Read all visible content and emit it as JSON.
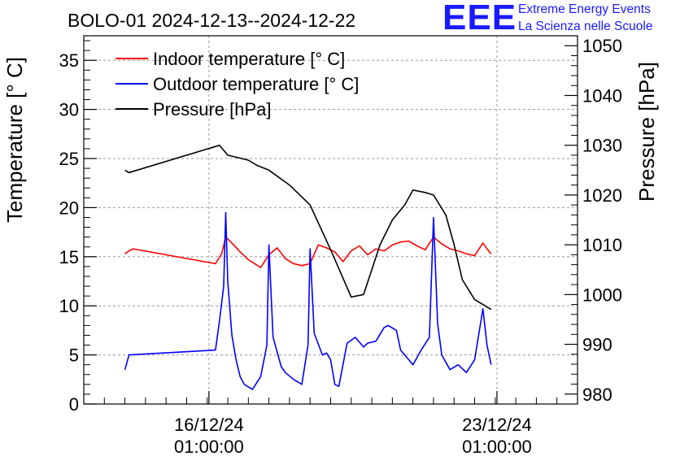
{
  "logo": {
    "mark": "EEE",
    "line1": "Extreme Energy Events",
    "line2": "La Scienza nelle Scuole",
    "color": "#1a1aff"
  },
  "chart_data": {
    "type": "line",
    "title": "BOLO-01 2024-12-13--2024-12-22",
    "ylabel": "Temperature [° C]",
    "y2label": "Pressure [hPa]",
    "ylim": [
      0,
      37.5
    ],
    "y2lim": [
      978,
      1052
    ],
    "xlim": [
      0,
      12.0
    ],
    "x_units": "days since 2024-12-13 00:00",
    "yticks": [
      0,
      5,
      10,
      15,
      20,
      25,
      30,
      35
    ],
    "y2ticks": [
      980,
      990,
      1000,
      1010,
      1020,
      1030,
      1040,
      1050
    ],
    "xticks": [
      {
        "x": 3.042,
        "label1": "16/12/24",
        "label2": "01:00:00"
      },
      {
        "x": 10.042,
        "label1": "23/12/24",
        "label2": "01:00:00"
      }
    ],
    "grid": true,
    "legend": "top-left",
    "series": [
      {
        "name": "Indoor temperature [° C]",
        "color": "#ff0000",
        "axis": "left",
        "x": [
          1.0,
          1.1,
          1.2,
          3.2,
          3.35,
          3.45,
          3.6,
          3.8,
          4.0,
          4.3,
          4.5,
          4.7,
          4.9,
          5.1,
          5.3,
          5.5,
          5.7,
          5.9,
          6.1,
          6.3,
          6.5,
          6.7,
          6.9,
          7.1,
          7.3,
          7.5,
          7.7,
          7.9,
          8.1,
          8.3,
          8.5,
          8.7,
          8.9,
          9.1,
          9.3,
          9.5,
          9.7,
          9.8,
          9.9
        ],
        "y": [
          15.3,
          15.6,
          15.8,
          14.3,
          15.3,
          17.0,
          16.4,
          15.5,
          14.7,
          13.9,
          15.2,
          15.9,
          14.8,
          14.3,
          14.1,
          14.3,
          16.2,
          15.9,
          15.5,
          14.5,
          15.6,
          16.1,
          15.2,
          15.8,
          15.6,
          16.2,
          16.5,
          16.6,
          16.1,
          15.7,
          17.0,
          16.3,
          15.8,
          15.6,
          15.3,
          15.1,
          16.4,
          15.8,
          15.3
        ]
      },
      {
        "name": "Outdoor temperature [° C]",
        "color": "#0000ff",
        "axis": "left",
        "x": [
          1.0,
          1.1,
          3.2,
          3.3,
          3.4,
          3.45,
          3.5,
          3.6,
          3.7,
          3.8,
          3.9,
          4.1,
          4.3,
          4.45,
          4.5,
          4.6,
          4.8,
          4.9,
          5.1,
          5.3,
          5.45,
          5.5,
          5.6,
          5.8,
          5.9,
          6.0,
          6.1,
          6.2,
          6.4,
          6.6,
          6.8,
          6.9,
          7.1,
          7.3,
          7.4,
          7.6,
          7.7,
          7.9,
          8.0,
          8.2,
          8.4,
          8.5,
          8.6,
          8.7,
          8.9,
          9.1,
          9.3,
          9.5,
          9.7,
          9.8,
          9.9
        ],
        "y": [
          3.5,
          5.0,
          5.5,
          8.5,
          12.0,
          19.5,
          12.5,
          7.0,
          4.5,
          2.8,
          2.0,
          1.5,
          2.8,
          6.0,
          16.2,
          6.8,
          3.8,
          3.2,
          2.5,
          2.0,
          6.0,
          15.8,
          7.2,
          5.0,
          5.2,
          4.5,
          2.0,
          1.8,
          6.2,
          6.8,
          5.8,
          6.2,
          6.4,
          7.8,
          8.0,
          7.5,
          5.5,
          4.5,
          4.0,
          5.5,
          6.8,
          19.0,
          8.2,
          5.0,
          3.5,
          4.0,
          3.2,
          4.5,
          9.7,
          6.0,
          4.0
        ]
      },
      {
        "name": "Pressure [hPa]",
        "color": "#000000",
        "axis": "right",
        "x": [
          1.0,
          1.1,
          3.3,
          3.5,
          4.0,
          4.2,
          4.5,
          5.0,
          5.5,
          6.0,
          6.5,
          6.8,
          7.0,
          7.2,
          7.5,
          7.8,
          8.0,
          8.3,
          8.5,
          8.8,
          9.0,
          9.2,
          9.5,
          9.7,
          9.9
        ],
        "y": [
          1025.0,
          1024.5,
          1030.0,
          1028.0,
          1027.0,
          1026.0,
          1025.0,
          1022.0,
          1018.0,
          1009.0,
          999.5,
          1000.0,
          1005.0,
          1010.0,
          1015.0,
          1018.0,
          1021.0,
          1020.5,
          1020.0,
          1016.0,
          1010.0,
          1003.0,
          999.0,
          998.0,
          997.0
        ]
      }
    ]
  }
}
